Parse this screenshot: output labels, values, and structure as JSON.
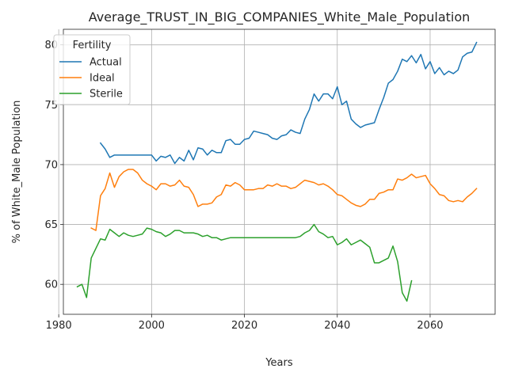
{
  "chart_data": {
    "type": "line",
    "title": "Average_TRUST_IN_BIG_COMPANIES_White_Male_Population",
    "xlabel": "Years",
    "ylabel": "% of White_Male Population",
    "xlim": [
      1981,
      2074
    ],
    "ylim": [
      57.5,
      81.3
    ],
    "xticks": [
      1980,
      2000,
      2020,
      2040,
      2060
    ],
    "yticks": [
      60,
      65,
      70,
      75,
      80
    ],
    "grid": true,
    "legend": {
      "title": "Fertility",
      "placement": "top-left"
    },
    "series": [
      {
        "name": "Actual",
        "color": "#1f77b4",
        "x": [
          1989,
          1990,
          1991,
          1992,
          1993,
          1994,
          1995,
          1996,
          1997,
          1998,
          1999,
          2000,
          2001,
          2002,
          2003,
          2004,
          2005,
          2006,
          2007,
          2008,
          2009,
          2010,
          2011,
          2012,
          2013,
          2014,
          2015,
          2016,
          2017,
          2018,
          2019,
          2020,
          2021,
          2022,
          2023,
          2024,
          2025,
          2026,
          2027,
          2028,
          2029,
          2030,
          2031,
          2032,
          2033,
          2034,
          2035,
          2036,
          2037,
          2038,
          2039,
          2040,
          2041,
          2042,
          2043,
          2044,
          2045,
          2046,
          2047,
          2048,
          2049,
          2050,
          2051,
          2052,
          2053,
          2054,
          2055,
          2056,
          2057,
          2058,
          2059,
          2060,
          2061,
          2062,
          2063,
          2064,
          2065,
          2066,
          2067,
          2068,
          2069,
          2070
        ],
        "values": [
          71.8,
          71.3,
          70.6,
          70.8,
          70.8,
          70.8,
          70.8,
          70.8,
          70.8,
          70.8,
          70.8,
          70.8,
          70.3,
          70.7,
          70.6,
          70.8,
          70.1,
          70.6,
          70.3,
          71.2,
          70.4,
          71.4,
          71.3,
          70.8,
          71.2,
          71.0,
          71.0,
          72.0,
          72.1,
          71.7,
          71.7,
          72.1,
          72.2,
          72.8,
          72.7,
          72.6,
          72.5,
          72.2,
          72.1,
          72.4,
          72.5,
          72.9,
          72.7,
          72.6,
          73.8,
          74.6,
          75.9,
          75.3,
          75.9,
          75.9,
          75.5,
          76.5,
          75.0,
          75.3,
          73.8,
          73.4,
          73.1,
          73.3,
          73.4,
          73.5,
          74.6,
          75.6,
          76.8,
          77.1,
          77.8,
          78.8,
          78.6,
          79.1,
          78.5,
          79.2,
          78.0,
          78.6,
          77.6,
          78.1,
          77.5,
          77.8,
          77.6,
          77.9,
          79.0,
          79.3,
          79.4,
          80.2
        ]
      },
      {
        "name": "Ideal",
        "color": "#ff7f0e",
        "x": [
          1987,
          1988,
          1989,
          1990,
          1991,
          1992,
          1993,
          1994,
          1995,
          1996,
          1997,
          1998,
          1999,
          2000,
          2001,
          2002,
          2003,
          2004,
          2005,
          2006,
          2007,
          2008,
          2009,
          2010,
          2011,
          2012,
          2013,
          2014,
          2015,
          2016,
          2017,
          2018,
          2019,
          2020,
          2021,
          2022,
          2023,
          2024,
          2025,
          2026,
          2027,
          2028,
          2029,
          2030,
          2031,
          2032,
          2033,
          2034,
          2035,
          2036,
          2037,
          2038,
          2039,
          2040,
          2041,
          2042,
          2043,
          2044,
          2045,
          2046,
          2047,
          2048,
          2049,
          2050,
          2051,
          2052,
          2053,
          2054,
          2055,
          2056,
          2057,
          2058,
          2059,
          2060,
          2061,
          2062,
          2063,
          2064,
          2065,
          2066,
          2067,
          2068,
          2069,
          2070
        ],
        "values": [
          64.7,
          64.5,
          67.4,
          68.0,
          69.3,
          68.1,
          69.0,
          69.4,
          69.6,
          69.6,
          69.3,
          68.7,
          68.4,
          68.2,
          67.9,
          68.4,
          68.4,
          68.2,
          68.3,
          68.7,
          68.2,
          68.1,
          67.5,
          66.5,
          66.7,
          66.7,
          66.8,
          67.3,
          67.5,
          68.3,
          68.2,
          68.5,
          68.3,
          67.9,
          67.9,
          67.9,
          68.0,
          68.0,
          68.3,
          68.2,
          68.4,
          68.2,
          68.2,
          68.0,
          68.1,
          68.4,
          68.7,
          68.6,
          68.5,
          68.3,
          68.4,
          68.2,
          67.9,
          67.5,
          67.4,
          67.1,
          66.8,
          66.6,
          66.5,
          66.7,
          67.1,
          67.1,
          67.6,
          67.7,
          67.9,
          67.9,
          68.8,
          68.7,
          68.9,
          69.2,
          68.9,
          69.0,
          69.1,
          68.4,
          68.0,
          67.5,
          67.4,
          67.0,
          66.9,
          67.0,
          66.9,
          67.3,
          67.6,
          68.0
        ]
      },
      {
        "name": "Sterile",
        "color": "#2ca02c",
        "x": [
          1984,
          1985,
          1986,
          1987,
          1988,
          1989,
          1990,
          1991,
          1992,
          1993,
          1994,
          1995,
          1996,
          1997,
          1998,
          1999,
          2000,
          2001,
          2002,
          2003,
          2004,
          2005,
          2006,
          2007,
          2008,
          2009,
          2010,
          2011,
          2012,
          2013,
          2014,
          2015,
          2016,
          2017,
          2018,
          2019,
          2020,
          2021,
          2022,
          2023,
          2024,
          2025,
          2026,
          2027,
          2028,
          2029,
          2030,
          2031,
          2032,
          2033,
          2034,
          2035,
          2036,
          2037,
          2038,
          2039,
          2040,
          2041,
          2042,
          2043,
          2044,
          2045,
          2046,
          2047,
          2048,
          2049,
          2050,
          2051,
          2052,
          2053,
          2054,
          2055,
          2056
        ],
        "values": [
          59.8,
          60.0,
          58.9,
          62.2,
          63.0,
          63.8,
          63.7,
          64.6,
          64.3,
          64.0,
          64.3,
          64.1,
          64.0,
          64.1,
          64.2,
          64.7,
          64.6,
          64.4,
          64.3,
          64.0,
          64.2,
          64.5,
          64.5,
          64.3,
          64.3,
          64.3,
          64.2,
          64.0,
          64.1,
          63.9,
          63.9,
          63.7,
          63.8,
          63.9,
          63.9,
          63.9,
          63.9,
          63.9,
          63.9,
          63.9,
          63.9,
          63.9,
          63.9,
          63.9,
          63.9,
          63.9,
          63.9,
          63.9,
          64.0,
          64.3,
          64.5,
          65.0,
          64.4,
          64.2,
          63.9,
          64.0,
          63.3,
          63.5,
          63.8,
          63.3,
          63.5,
          63.7,
          63.4,
          63.1,
          61.8,
          61.8,
          62.0,
          62.2,
          63.2,
          61.9,
          59.3,
          58.6,
          60.3
        ]
      }
    ]
  }
}
